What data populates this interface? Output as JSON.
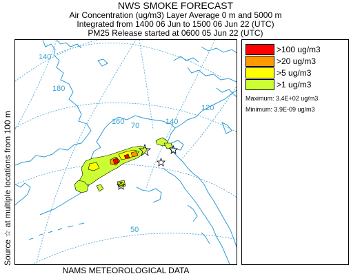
{
  "header": {
    "title": "NWS SMOKE FORECAST",
    "line2": "Air Concentration (ug/m3) Layer Average    0 m and  5000 m",
    "line3": "Integrated from 1400 06 Jun to 1500 06 Jun 22 (UTC)",
    "line4": "PM25 Release started at 0600 05 Jun 22 (UTC)"
  },
  "side_label": "Source ☆   at multiple locations   from  100 m",
  "legend": {
    "items": [
      {
        "label": ">100 ug/m3",
        "color": "#ff0000"
      },
      {
        "label": ">20 ug/m3",
        "color": "#ff9900"
      },
      {
        "label": ">5 ug/m3",
        "color": "#ffff00"
      },
      {
        "label": ">1 ug/m3",
        "color": "#ccff33"
      }
    ],
    "maximum": "Maximum: 3.4E+02 ug/m3",
    "minimum": "Minimum: 3.9E-09 ug/m3"
  },
  "map": {
    "grid_labels": {
      "lon_140w_left": "140",
      "lon_180": "180",
      "lon_160": "160",
      "lat_70": "70",
      "lon_140": "140",
      "lon_120": "120",
      "lat_50": "50"
    },
    "colors": {
      "coast": "#2a9bd6",
      "grid": "#3a9fd0",
      "plume_light": "#ccff33",
      "plume_yellow": "#ffff00",
      "plume_orange": "#ff9900",
      "plume_red": "#ff0000"
    }
  },
  "footer": "NAMS METEOROLOGICAL DATA"
}
